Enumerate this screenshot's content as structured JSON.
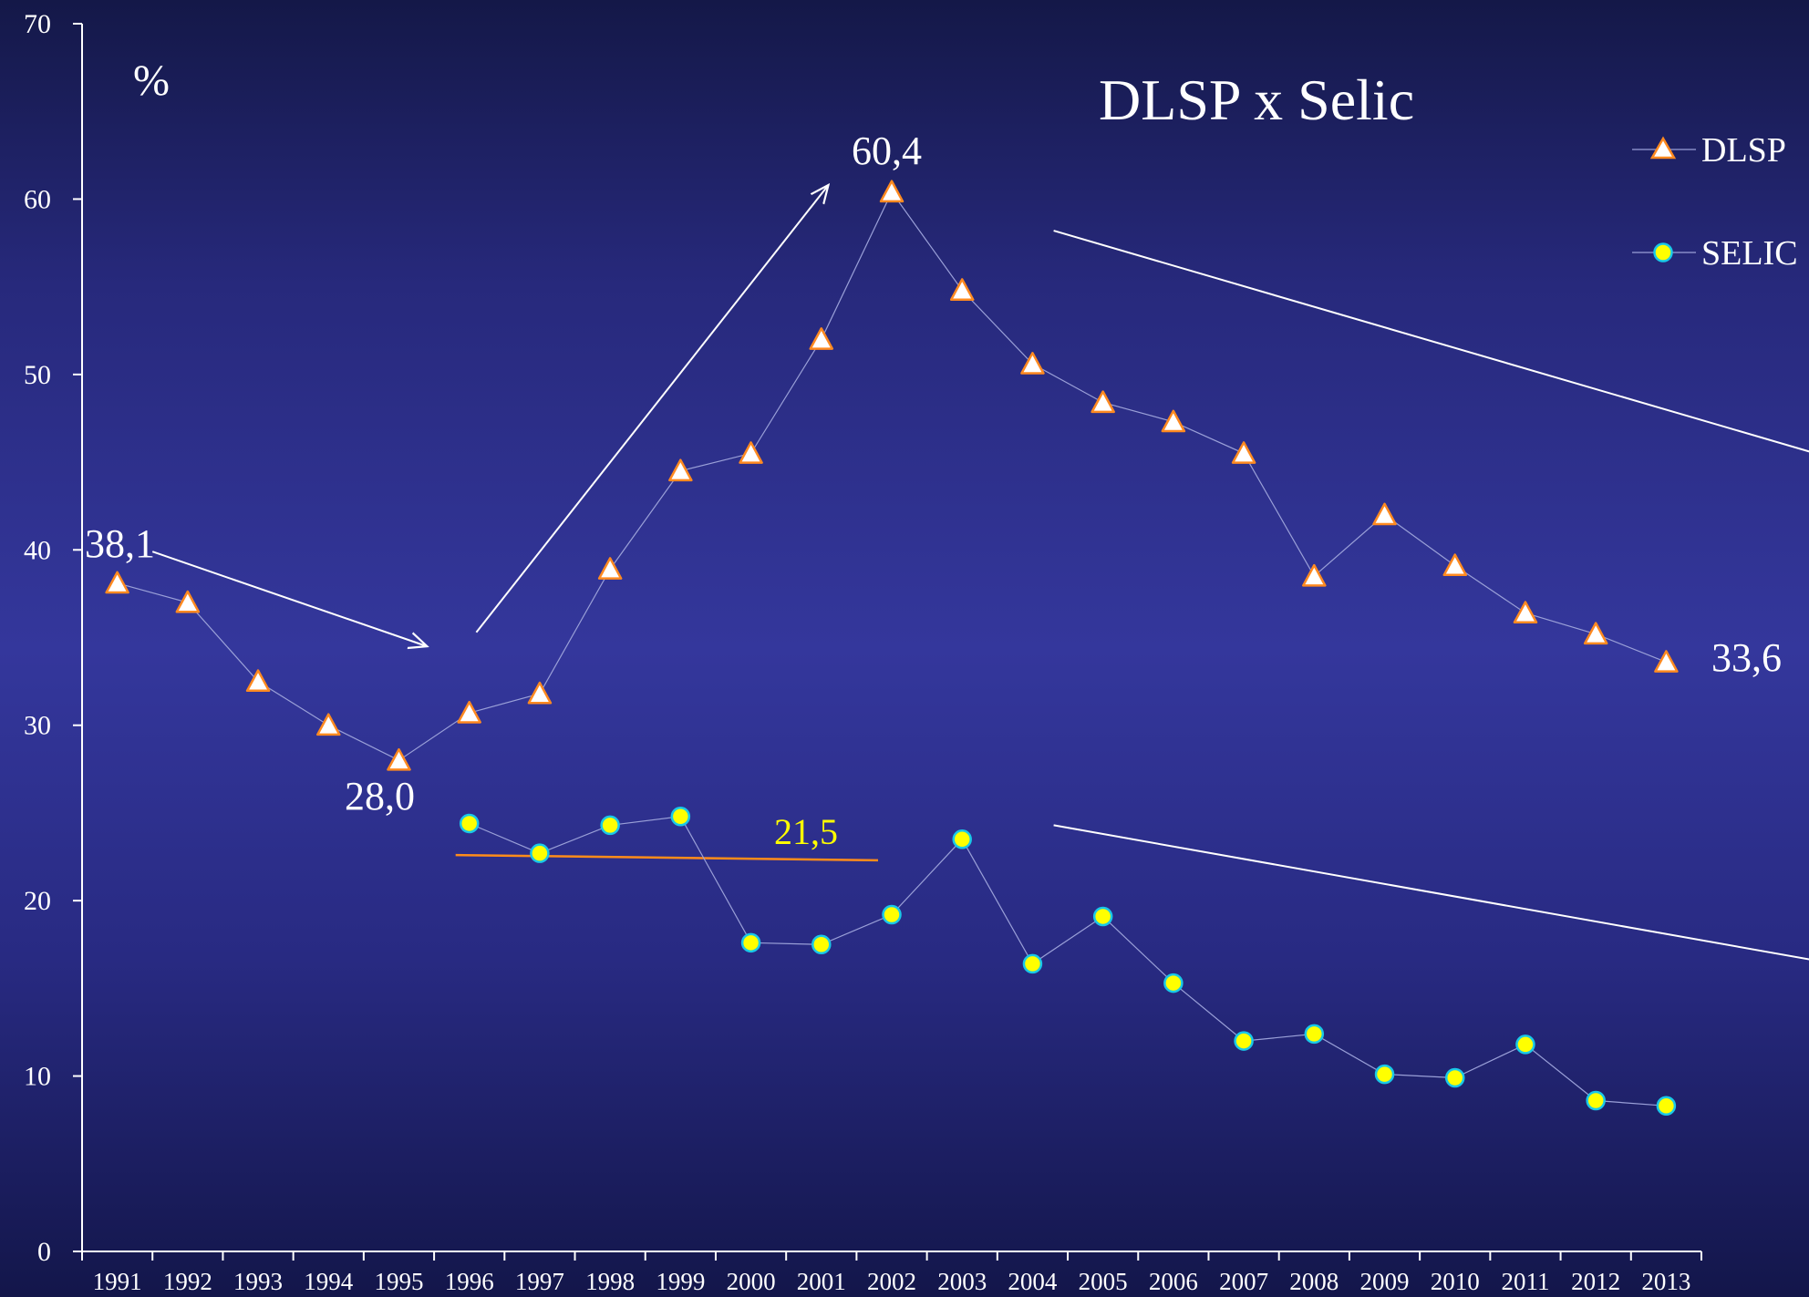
{
  "chart_data": {
    "type": "line",
    "title": "DLSP x Selic",
    "ylabel": "%",
    "xlabel": "",
    "ylim": [
      0,
      70
    ],
    "yticks": [
      0,
      10,
      20,
      30,
      40,
      50,
      60,
      70
    ],
    "legend_position": "top-right",
    "grid": false,
    "x": [
      1991,
      1992,
      1993,
      1994,
      1995,
      1996,
      1997,
      1998,
      1999,
      2000,
      2001,
      2002,
      2003,
      2004,
      2005,
      2006,
      2007,
      2008,
      2009,
      2010,
      2011,
      2012,
      2013
    ],
    "series": [
      {
        "name": "DLSP",
        "marker": "triangle",
        "color": "#ffa040",
        "values": [
          38.1,
          37.0,
          32.5,
          30.0,
          28.0,
          30.7,
          31.8,
          38.9,
          44.5,
          45.5,
          52.0,
          60.4,
          54.8,
          50.6,
          48.4,
          47.3,
          45.5,
          38.5,
          42.0,
          39.1,
          36.4,
          35.2,
          33.6
        ]
      },
      {
        "name": "SELIC",
        "marker": "circle",
        "color": "#ffff00",
        "values": [
          null,
          null,
          null,
          null,
          null,
          24.4,
          22.7,
          24.3,
          24.8,
          17.6,
          17.5,
          19.2,
          23.5,
          16.4,
          19.1,
          15.3,
          12.0,
          12.4,
          10.1,
          9.9,
          11.8,
          8.6,
          8.3
        ]
      }
    ],
    "annotations": [
      {
        "text": "38,1",
        "color": "#ffffff"
      },
      {
        "text": "28,0",
        "color": "#ffffff"
      },
      {
        "text": "60,4",
        "color": "#ffffff"
      },
      {
        "text": "33,6",
        "color": "#ffffff"
      },
      {
        "text": "21,5",
        "color": "#ffff00"
      }
    ],
    "average_line": {
      "from": 1996,
      "to": 2002,
      "y_start": 22.6,
      "y_end": 22.3,
      "color": "#ff8c1a"
    },
    "trend_arrows": [
      {
        "from": [
          1991.5,
          39.9
        ],
        "to": [
          1995.4,
          34.5
        ]
      },
      {
        "from": [
          1996.1,
          35.3
        ],
        "to": [
          2001.1,
          60.8
        ]
      },
      {
        "from": [
          2004.3,
          58.2
        ],
        "to": [
          2021.6,
          37.9
        ]
      },
      {
        "from": [
          2004.3,
          24.3
        ],
        "to": [
          2021.0,
          12.4
        ]
      }
    ]
  }
}
